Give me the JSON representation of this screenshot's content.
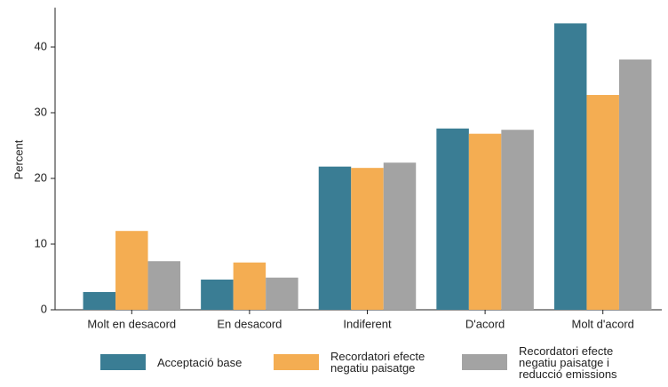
{
  "chart_data": {
    "type": "bar",
    "ylabel": "Percent",
    "categories": [
      "Molt en desacord",
      "En desacord",
      "Indiferent",
      "D'acord",
      "Molt d'acord"
    ],
    "series": [
      {
        "name": "Acceptació base",
        "color": "#3a7d94",
        "values": [
          2.7,
          4.6,
          21.8,
          27.6,
          43.6
        ]
      },
      {
        "name": "Recordatori efecte negatiu paisatge",
        "color": "#f4ad52",
        "values": [
          12.0,
          7.2,
          21.6,
          26.8,
          32.7
        ]
      },
      {
        "name": "Recordatori efecte negatiu paisatge i reducció emissions",
        "color": "#a3a3a3",
        "values": [
          7.4,
          4.9,
          22.4,
          27.4,
          38.1
        ]
      }
    ],
    "ylim": [
      0,
      46
    ],
    "yticks": [
      0,
      10,
      20,
      30,
      40
    ],
    "grid": false
  }
}
